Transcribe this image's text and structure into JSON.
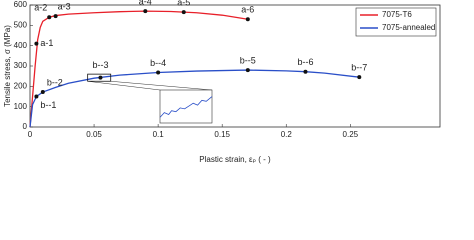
{
  "chart_data": {
    "type": "line",
    "x_label": "Plastic strain, εₚ ( - )",
    "y_label": "Tensile stress, σ (MPa)",
    "xlim": [
      0,
      0.32
    ],
    "xticks": [
      0,
      0.05,
      0.1,
      0.15,
      0.2,
      0.25
    ],
    "ylim": [
      0,
      600
    ],
    "yticks": [
      0,
      100,
      200,
      300,
      400,
      500,
      600
    ],
    "legend": "upper right",
    "series": [
      {
        "name": "7075-T6",
        "color": "#e8202a",
        "x": [
          0,
          0.002,
          0.004,
          0.006,
          0.008,
          0.01,
          0.015,
          0.02,
          0.03,
          0.05,
          0.07,
          0.09,
          0.11,
          0.13,
          0.15,
          0.17
        ],
        "values": [
          0,
          150,
          300,
          430,
          490,
          520,
          540,
          548,
          555,
          562,
          567,
          570,
          568,
          562,
          550,
          530
        ],
        "markers": {
          "x": [
            0.005,
            0.015,
            0.02,
            0.09,
            0.12,
            0.17
          ],
          "values": [
            410,
            540,
            545,
            570,
            565,
            530
          ],
          "labels": [
            "a-1",
            "a-2",
            "a-3",
            "a-4",
            "a-5",
            "a-6"
          ]
        }
      },
      {
        "name": "7075-annealed",
        "color": "#2a4fc8",
        "x": [
          0,
          0.002,
          0.005,
          0.01,
          0.02,
          0.03,
          0.05,
          0.07,
          0.1,
          0.13,
          0.17,
          0.2,
          0.215,
          0.23,
          0.257
        ],
        "values": [
          0,
          110,
          150,
          172,
          195,
          215,
          240,
          255,
          268,
          275,
          280,
          276,
          272,
          265,
          245
        ],
        "markers": {
          "x": [
            0.005,
            0.01,
            0.055,
            0.1,
            0.17,
            0.215,
            0.257
          ],
          "values": [
            150,
            172,
            243,
            268,
            280,
            272,
            245
          ],
          "labels": [
            "b--1",
            "b--2",
            "b--3",
            "b--4",
            "b--5",
            "b--6",
            "b--7"
          ]
        }
      }
    ],
    "inset": {
      "xlim": [
        0.045,
        0.063
      ],
      "ylim": [
        225,
        260
      ],
      "x": [
        0.045,
        0.0465,
        0.048,
        0.049,
        0.0505,
        0.052,
        0.0535,
        0.055,
        0.0565,
        0.058,
        0.0595,
        0.061,
        0.063
      ],
      "values": [
        231,
        236,
        234,
        238,
        237,
        241,
        240,
        243,
        246,
        244,
        249,
        248,
        253
      ]
    }
  }
}
